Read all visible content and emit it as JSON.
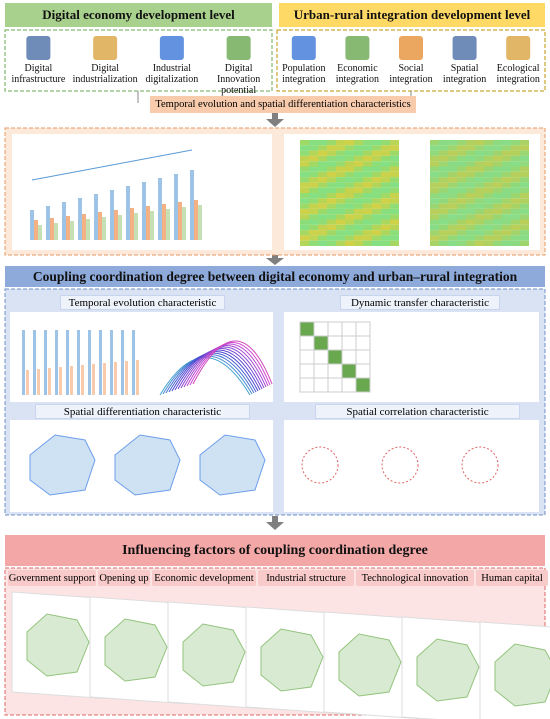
{
  "left_group": {
    "title": "Digital economy development level",
    "items": [
      "Digital infrastructure",
      "Digital industrialization",
      "Industrial digitalization",
      "Digital Innovation potential"
    ]
  },
  "right_group": {
    "title": "Urban-rural integration development level",
    "items": [
      "Population integration",
      "Economic integration",
      "Social integration",
      "Spatial integration",
      "Ecological integration"
    ]
  },
  "banner": "Temporal evolution and spatial differentiation characteristics",
  "coupling": {
    "title": "Coupling coordination degree between digital economy and urban–rural integration",
    "panels": [
      "Temporal evolution  characteristic",
      "Dynamic transfer characteristic",
      "Spatial differentiation characteristic",
      "Spatial correlation characteristic"
    ]
  },
  "influencing": {
    "title": "Influencing factors of coupling coordination degree",
    "factors": [
      "Government support",
      "Opening up",
      "Economic development",
      "Industrial structure",
      "Technological innovation",
      "Human capital"
    ]
  }
}
